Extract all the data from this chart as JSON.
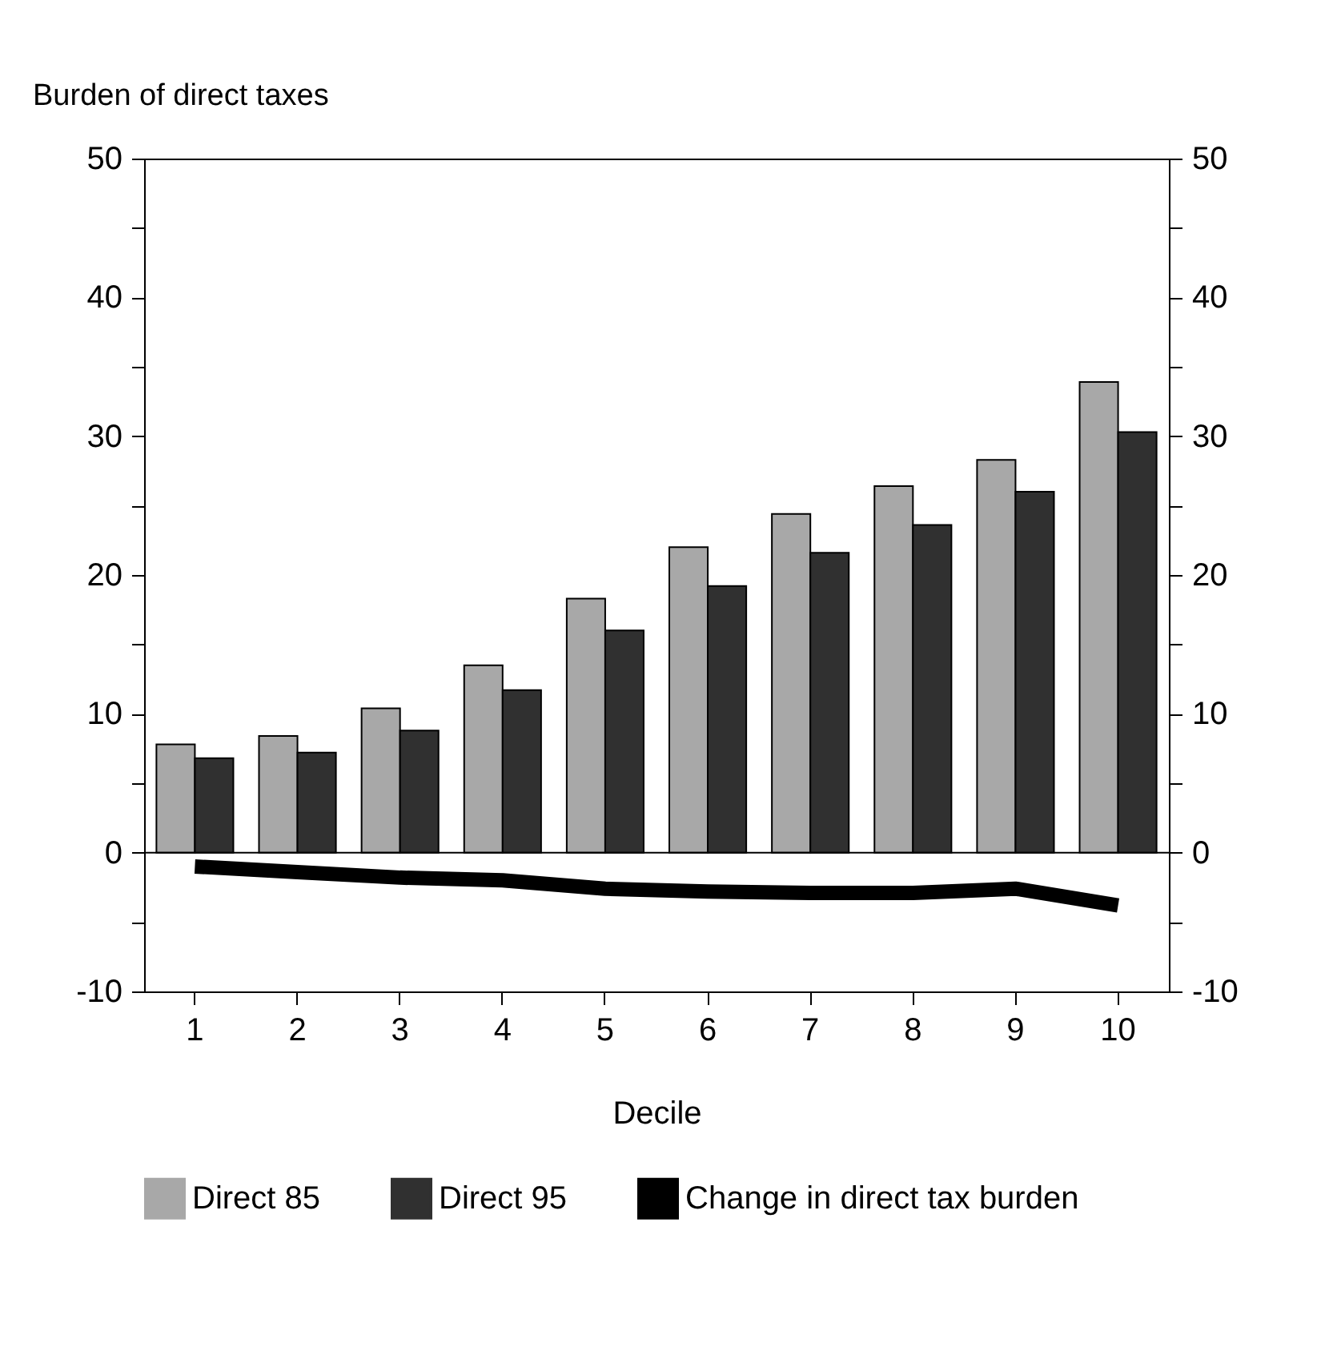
{
  "chart_data": {
    "type": "bar",
    "ylabel": "Burden of direct taxes",
    "xlabel": "Decile",
    "categories": [
      "1",
      "2",
      "3",
      "4",
      "5",
      "6",
      "7",
      "8",
      "9",
      "10"
    ],
    "series": [
      {
        "name": "Direct 85",
        "color": "#a8a8a8",
        "values": [
          7.8,
          8.4,
          10.4,
          13.5,
          18.3,
          22,
          24.4,
          26.4,
          28.3,
          33.9
        ]
      },
      {
        "name": "Direct 95",
        "color": "#303030",
        "values": [
          6.8,
          7.2,
          8.8,
          11.7,
          16,
          19.2,
          21.6,
          23.6,
          26,
          30.3
        ]
      },
      {
        "name": "Change in direct tax burden",
        "type": "line",
        "color": "#000000",
        "values": [
          -1,
          -1.4,
          -1.8,
          -2,
          -2.6,
          -2.8,
          -2.9,
          -2.9,
          -2.6,
          -3.8
        ]
      }
    ],
    "ylim": [
      -10,
      50
    ],
    "yticks": [
      -10,
      {
        "value": -5,
        "label": null
      },
      0,
      {
        "value": 5,
        "label": null
      },
      10,
      {
        "value": 15,
        "label": null
      },
      20,
      {
        "value": 25,
        "label": null
      },
      30,
      {
        "value": 35,
        "label": null
      },
      40,
      {
        "value": 45,
        "label": null
      },
      50
    ],
    "y2lim": [
      -10,
      50
    ],
    "y2ticks": [
      -10,
      {
        "value": -5,
        "label": null
      },
      0,
      {
        "value": 5,
        "label": null
      },
      10,
      {
        "value": 15,
        "label": null
      },
      20,
      {
        "value": 25,
        "label": null
      },
      30,
      {
        "value": 35,
        "label": null
      },
      40,
      {
        "value": 45,
        "label": null
      },
      50
    ],
    "ref_lines": [
      {
        "axis": "y",
        "value": 0,
        "color": "#000000"
      }
    ],
    "grid": false,
    "legend": "bottom"
  }
}
